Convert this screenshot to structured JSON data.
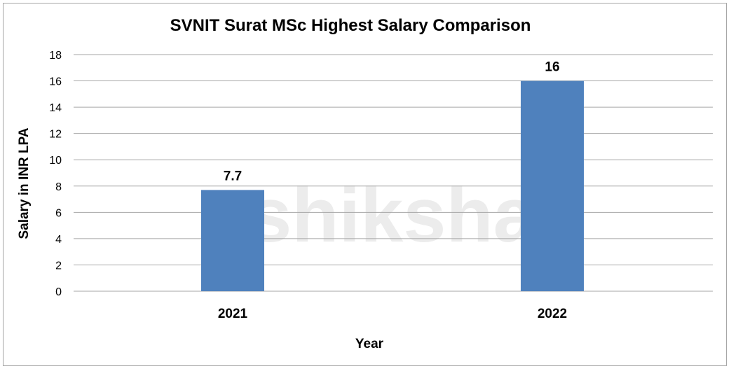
{
  "chart_data": {
    "type": "bar",
    "title": "SVNIT Surat MSc Highest Salary Comparison",
    "xlabel": "Year",
    "ylabel": "Salary in INR LPA",
    "categories": [
      "2021",
      "2022"
    ],
    "values": [
      7.7,
      16
    ],
    "data_labels": [
      "7.7",
      "16"
    ],
    "ylim": [
      0,
      18
    ],
    "yticks": [
      0,
      2,
      4,
      6,
      8,
      10,
      12,
      14,
      16,
      18
    ],
    "grid": true,
    "bar_color": "#4F81BD",
    "watermark": "shiksha"
  }
}
